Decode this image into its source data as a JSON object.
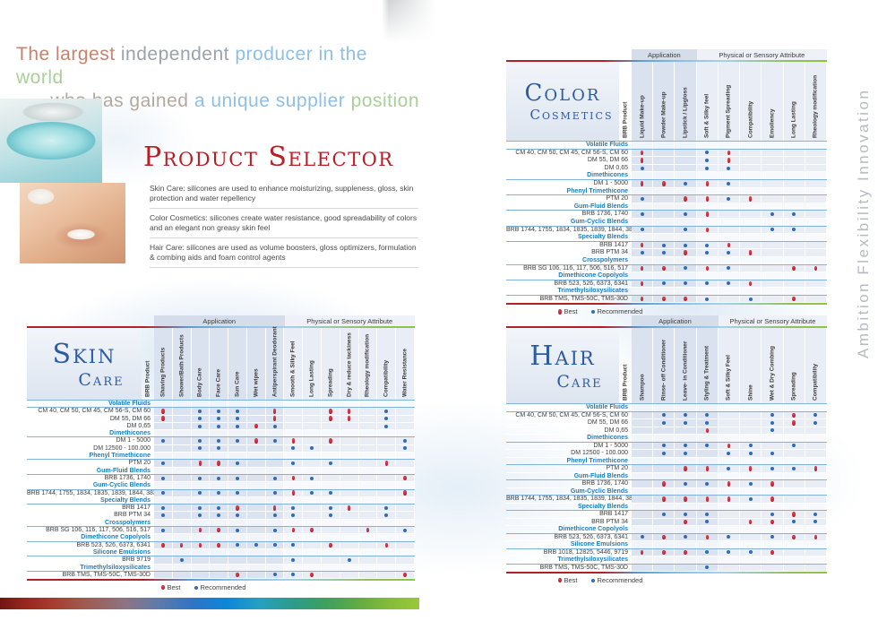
{
  "headline": {
    "line1": [
      {
        "text": "The largest ",
        "color": "#c8826d"
      },
      {
        "text": "independent ",
        "color": "#9aa2aa"
      },
      {
        "text": "producer in the ",
        "color": "#8fbfe4"
      },
      {
        "text": "world",
        "color": "#a9cf9a"
      }
    ],
    "line2": [
      {
        "text": "who has gained ",
        "color": "#b3a89f"
      },
      {
        "text": "a unique supplier ",
        "color": "#8fbfe4"
      },
      {
        "text": "position",
        "color": "#a9cf9a"
      }
    ]
  },
  "intro": {
    "title": "Product Selector",
    "paragraphs": [
      "Skin Care: silicones are used to enhance moisturizing, suppleness, gloss, skin protection and water repellency",
      "Color Cosmetics: silicones create water resistance, good spreadability of colors and an elegant non greasy skin feel",
      "Hair Care: silicones are used as volume boosters, gloss optimizers, formulation & combing aids and foam control agents"
    ]
  },
  "side_text": "Ambition Flexibility Innovation",
  "legend": {
    "best_label": "Best",
    "recommended_label": "Recommended"
  },
  "colors": {
    "best": "#b8212b",
    "recommended": "#2f6cb3",
    "category_blue": "#1b7ec2",
    "title_blue": "#2b5ba4",
    "title_red": "#b71f25"
  },
  "tables": [
    {
      "id": "skin",
      "title": [
        "Skin",
        "Care"
      ],
      "groups": [
        "Application",
        "Physical or Sensory Attribute"
      ],
      "product_header": "BRB Product",
      "app_count": 7,
      "columns": [
        "Shaving Products",
        "Shower/Bath Products",
        "Body Care",
        "Face Care",
        "Sun Care",
        "Wet wipes",
        "Antiperspirant Deodorant",
        "Smooth & Silky Feel",
        "Long Lasting",
        "Spreading",
        "Dry & reduce tackiness",
        "Rheology modification",
        "Compatibility",
        "Water Resistance"
      ],
      "rows": [
        {
          "category": "Volatile Fluids"
        },
        {
          "label": "CM 40, CM 50, CM 45, CM 56-S, CM 60",
          "dots": [
            "b",
            "",
            "r",
            "r",
            "r",
            "",
            "b",
            "",
            "",
            "b",
            "b",
            "",
            "r",
            ""
          ]
        },
        {
          "label": "DM 55, DM 66",
          "dots": [
            "b",
            "",
            "r",
            "r",
            "r",
            "",
            "b",
            "",
            "",
            "b",
            "b",
            "",
            "r",
            ""
          ]
        },
        {
          "label": "DM 0,65",
          "dots": [
            "",
            "",
            "r",
            "r",
            "r",
            "b",
            "r",
            "",
            "",
            "",
            "",
            "",
            "r",
            ""
          ]
        },
        {
          "category": "Dimethicones"
        },
        {
          "label": "DM 1 - 5000",
          "dots": [
            "r",
            "",
            "r",
            "r",
            "r",
            "b",
            "r",
            "b",
            "",
            "b",
            "",
            "",
            "",
            "r"
          ]
        },
        {
          "label": "DM 12500 - 100.000",
          "dots": [
            "",
            "",
            "r",
            "r",
            "",
            "",
            "",
            "r",
            "r",
            "",
            "",
            "",
            "",
            "r"
          ]
        },
        {
          "category": "Phenyl Trimethicone"
        },
        {
          "label": "PTM 20",
          "dots": [
            "r",
            "",
            "b",
            "b",
            "r",
            "",
            "",
            "r",
            "",
            "r",
            "",
            "",
            "b",
            ""
          ]
        },
        {
          "category": "Gum-Fluid Blends"
        },
        {
          "label": "BRB 1736, 1740",
          "dots": [
            "r",
            "",
            "r",
            "r",
            "r",
            "",
            "r",
            "b",
            "r",
            "",
            "",
            "",
            "",
            "b"
          ]
        },
        {
          "category": "Gum-Cyclic Blends"
        },
        {
          "label": "BRB 1744, 1755, 1834, 1835, 1839, 1844, 3839",
          "dots": [
            "r",
            "",
            "r",
            "r",
            "r",
            "",
            "r",
            "b",
            "r",
            "r",
            "",
            "",
            "",
            "b"
          ]
        },
        {
          "category": "Specialty Blends"
        },
        {
          "label": "BRB 1417",
          "dots": [
            "r",
            "",
            "r",
            "r",
            "b",
            "",
            "b",
            "r",
            "",
            "r",
            "b",
            "",
            "r",
            ""
          ]
        },
        {
          "label": "BRB PTM 34",
          "dots": [
            "r",
            "",
            "r",
            "r",
            "r",
            "",
            "r",
            "r",
            "",
            "r",
            "",
            "",
            "r",
            ""
          ]
        },
        {
          "category": "Crosspolymers"
        },
        {
          "label": "BRB SG 106, 116, 117, 506, 516, 517",
          "dots": [
            "r",
            "",
            "b",
            "b",
            "r",
            "",
            "r",
            "b",
            "b",
            "",
            "",
            "b",
            "",
            "r"
          ]
        },
        {
          "category": "Dimethicone Copolyols"
        },
        {
          "label": "BRB 523, 526, 6373, 6341",
          "dots": [
            "b",
            "b",
            "b",
            "b",
            "r",
            "r",
            "r",
            "r",
            "",
            "b",
            "",
            "",
            "b",
            ""
          ]
        },
        {
          "category": "Silicone Emulsions"
        },
        {
          "label": "BRB 9719",
          "dots": [
            "",
            "r",
            "",
            "",
            "",
            "",
            "",
            "r",
            "",
            "",
            "r",
            "",
            "",
            ""
          ]
        },
        {
          "category": "Trimethylsiloxysilicates"
        },
        {
          "label": "BRB TMS, TMS-50C, TMS-30D",
          "dots": [
            "",
            "",
            "",
            "",
            "b",
            "",
            "r",
            "r",
            "b",
            "",
            "",
            "",
            "",
            "b"
          ]
        }
      ]
    },
    {
      "id": "color",
      "title": [
        "Color",
        "Cosmetics"
      ],
      "groups": [
        "Application",
        "Physical or Sensory Attribute"
      ],
      "product_header": "BRB Product",
      "app_count": 3,
      "columns": [
        "Liquid Make-up",
        "Powder Make-up",
        "Lipstick / Lipgloss",
        "Soft & Silky feel",
        "Pigment Spreading",
        "Compatibility",
        "Emoliency",
        "Long Lasting",
        "Rheology modification"
      ],
      "rows": [
        {
          "category": "Volatile Fluids"
        },
        {
          "label": "CM 40, CM 50, CM 45, CM 56-S, CM 60",
          "dots": [
            "b",
            "",
            "",
            "r",
            "b",
            "",
            "",
            "",
            ""
          ]
        },
        {
          "label": "DM 55, DM 66",
          "dots": [
            "b",
            "",
            "",
            "r",
            "b",
            "",
            "",
            "",
            ""
          ]
        },
        {
          "label": "DM 0,65",
          "dots": [
            "r",
            "",
            "",
            "r",
            "r",
            "",
            "",
            "",
            ""
          ]
        },
        {
          "category": "Dimethicones"
        },
        {
          "label": "DM 1 - 5000",
          "dots": [
            "b",
            "b",
            "r",
            "b",
            "r",
            "",
            "",
            "",
            ""
          ]
        },
        {
          "category": "Phenyl Trimethicone"
        },
        {
          "label": "PTM 20",
          "dots": [
            "r",
            "",
            "b",
            "b",
            "r",
            "b",
            "",
            "",
            ""
          ]
        },
        {
          "category": "Gum-Fluid Blends"
        },
        {
          "label": "BRB 1736, 1740",
          "dots": [
            "r",
            "",
            "r",
            "b",
            "",
            "",
            "r",
            "r",
            ""
          ]
        },
        {
          "category": "Gum-Cyclic Blends"
        },
        {
          "label": "BRB 1744, 1755, 1834, 1835, 1839, 1844, 3839",
          "dots": [
            "r",
            "",
            "r",
            "b",
            "",
            "",
            "r",
            "r",
            ""
          ]
        },
        {
          "category": "Specialty Blends"
        },
        {
          "label": "BRB 1417",
          "dots": [
            "b",
            "r",
            "r",
            "r",
            "b",
            "",
            "",
            "",
            ""
          ]
        },
        {
          "label": "BRB PTM 34",
          "dots": [
            "r",
            "r",
            "b",
            "r",
            "r",
            "b",
            "",
            "",
            ""
          ]
        },
        {
          "category": "Crosspolymers"
        },
        {
          "label": "BRB SG 106, 116, 117, 506, 516, 517",
          "dots": [
            "b",
            "b",
            "r",
            "b",
            "r",
            "",
            "",
            "b",
            "b"
          ]
        },
        {
          "category": "Dimethicone Copolyols"
        },
        {
          "label": "BRB 523, 526, 6373, 6341",
          "dots": [
            "b",
            "r",
            "r",
            "r",
            "r",
            "b",
            "",
            "",
            ""
          ]
        },
        {
          "category": "Trimethylsiloxysilicates"
        },
        {
          "label": "BRB TMS, TMS-50C, TMS-30D",
          "dots": [
            "b",
            "b",
            "b",
            "r",
            "",
            "r",
            "",
            "b",
            ""
          ]
        }
      ]
    },
    {
      "id": "hair",
      "title": [
        "Hair",
        "Care"
      ],
      "groups": [
        "Application",
        "Physical or Sensory Attribute"
      ],
      "product_header": "BRB Product",
      "app_count": 4,
      "columns": [
        "Shampoo",
        "Rinse- off Conditioner",
        "Leave- in Conditioner",
        "Styling & Treatment",
        "Soft & Silky Feel",
        "Shine",
        "Wet & Dry Combing",
        "Spreading",
        "Compatibility"
      ],
      "rows": [
        {
          "category": "Volatile Fluids"
        },
        {
          "label": "CM 40, CM 50, CM 45, CM 56-S, CM 60",
          "dots": [
            "",
            "r",
            "r",
            "r",
            "",
            "",
            "r",
            "b",
            "r"
          ]
        },
        {
          "label": "DM 55, DM 66",
          "dots": [
            "",
            "r",
            "r",
            "r",
            "",
            "",
            "r",
            "b",
            "r"
          ]
        },
        {
          "label": "DM 0,65",
          "dots": [
            "",
            "",
            "",
            "b",
            "",
            "",
            "r",
            "",
            ""
          ]
        },
        {
          "category": "Dimethicones"
        },
        {
          "label": "DM 1 - 5000",
          "dots": [
            "",
            "r",
            "r",
            "r",
            "b",
            "r",
            "",
            "r",
            ""
          ]
        },
        {
          "label": "DM 12500 - 100.000",
          "dots": [
            "",
            "r",
            "r",
            "",
            "r",
            "r",
            "r",
            "",
            ""
          ]
        },
        {
          "category": "Phenyl Trimethicone"
        },
        {
          "label": "PTM 20",
          "dots": [
            "",
            "",
            "b",
            "b",
            "r",
            "b",
            "r",
            "r",
            "b"
          ]
        },
        {
          "category": "Gum-Fluid Blends"
        },
        {
          "label": "BRB 1736, 1740",
          "dots": [
            "",
            "b",
            "r",
            "r",
            "b",
            "r",
            "b",
            "",
            ""
          ]
        },
        {
          "category": "Gum-Cyclic Blends"
        },
        {
          "label": "BRB 1744, 1755, 1834, 1835, 1839, 1844, 3839",
          "dots": [
            "",
            "b",
            "b",
            "b",
            "b",
            "r",
            "b",
            "",
            ""
          ]
        },
        {
          "category": "Specialty Blends"
        },
        {
          "label": "BRB 1417",
          "dots": [
            "",
            "r",
            "r",
            "r",
            "",
            "",
            "r",
            "b",
            "r"
          ]
        },
        {
          "label": "BRB PTM 34",
          "dots": [
            "",
            "",
            "b",
            "r",
            "",
            "b",
            "b",
            "r",
            "r"
          ]
        },
        {
          "category": "Dimethicone Copolyols"
        },
        {
          "label": "BRB 523, 526, 6373, 6341",
          "dots": [
            "r",
            "b",
            "r",
            "b",
            "r",
            "",
            "r",
            "b",
            "b"
          ]
        },
        {
          "category": "Silicone Emulsions"
        },
        {
          "label": "BRB 1018, 12825, 5446, 9719",
          "dots": [
            "b",
            "b",
            "b",
            "r",
            "r",
            "r",
            "b",
            "",
            ""
          ]
        },
        {
          "category": "Trimethylsiloxysilicates"
        },
        {
          "label": "BRB TMS, TMS-50C, TMS-30D",
          "dots": [
            "",
            "",
            "",
            "r",
            "",
            "",
            "",
            "",
            ""
          ]
        }
      ]
    }
  ]
}
